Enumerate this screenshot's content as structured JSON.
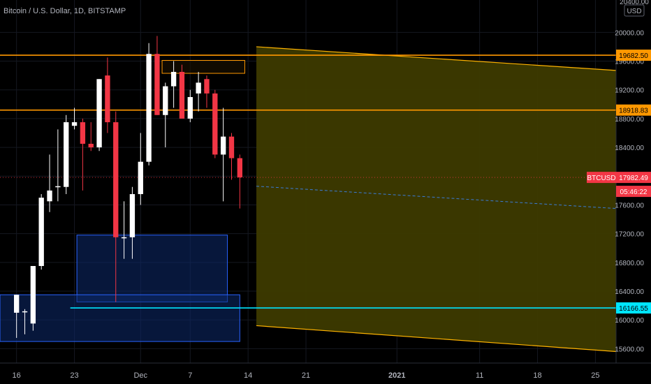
{
  "header": {
    "symbol_line": "Bitcoin / U.S. Dollar, 1D, BITSTAMP",
    "currency": "USD",
    "top_tick": "20400.00"
  },
  "colors": {
    "background": "#000000",
    "up_candle": "#ffffff",
    "down_candle": "#f23645",
    "level_line": "#ff9800",
    "support_line": "#00e5ff",
    "channel_fill": "#3d3a00",
    "channel_edge": "#ffb300",
    "demand_zone": "#0d2a6b",
    "demand_edge": "#2962ff",
    "midline": "#3a7bd5",
    "price_label": "#f23645",
    "axis_text": "#b2b5be"
  },
  "chart_data": {
    "type": "candlestick",
    "title": "Bitcoin / U.S. Dollar, 1D, BITSTAMP",
    "ylabel": "USD",
    "ylim": [
      15400,
      20450
    ],
    "y_ticks": [
      15600,
      16000,
      16400,
      16800,
      17200,
      17600,
      18000,
      18400,
      18800,
      19200,
      19600,
      20000
    ],
    "x_ticks": [
      {
        "label": "16",
        "day": 0
      },
      {
        "label": "23",
        "day": 7
      },
      {
        "label": "Dec",
        "day": 15
      },
      {
        "label": "7",
        "day": 21
      },
      {
        "label": "14",
        "day": 28
      },
      {
        "label": "21",
        "day": 35
      },
      {
        "label": "2021",
        "day": 46
      },
      {
        "label": "11",
        "day": 56
      },
      {
        "label": "18",
        "day": 63
      },
      {
        "label": "25",
        "day": 70
      }
    ],
    "x_range_days": [
      -2,
      72.5
    ],
    "candles": [
      {
        "o": 16100,
        "h": 16350,
        "l": 15750,
        "c": 16350
      },
      {
        "o": 16120,
        "h": 16150,
        "l": 15800,
        "c": 16120
      },
      {
        "o": 15950,
        "h": 16750,
        "l": 15850,
        "c": 16750
      },
      {
        "o": 16750,
        "h": 17750,
        "l": 16700,
        "c": 17700
      },
      {
        "o": 17650,
        "h": 18300,
        "l": 17500,
        "c": 17800
      },
      {
        "o": 17850,
        "h": 18650,
        "l": 17650,
        "c": 17860
      },
      {
        "o": 17850,
        "h": 18850,
        "l": 17750,
        "c": 18750
      },
      {
        "o": 18700,
        "h": 18950,
        "l": 18650,
        "c": 18750
      },
      {
        "o": 18750,
        "h": 18800,
        "l": 17800,
        "c": 18450
      },
      {
        "o": 18450,
        "h": 18750,
        "l": 18350,
        "c": 18400
      },
      {
        "o": 18400,
        "h": 19350,
        "l": 18350,
        "c": 19350
      },
      {
        "o": 19400,
        "h": 19650,
        "l": 18600,
        "c": 18750
      },
      {
        "o": 18750,
        "h": 18900,
        "l": 16250,
        "c": 17150
      },
      {
        "o": 17150,
        "h": 17650,
        "l": 16850,
        "c": 17150
      },
      {
        "o": 17150,
        "h": 17850,
        "l": 16850,
        "c": 17750
      },
      {
        "o": 17750,
        "h": 18600,
        "l": 17600,
        "c": 18200
      },
      {
        "o": 18200,
        "h": 19850,
        "l": 18150,
        "c": 19700
      },
      {
        "o": 19700,
        "h": 19950,
        "l": 18850,
        "c": 18850
      },
      {
        "o": 18850,
        "h": 19300,
        "l": 18400,
        "c": 19250
      },
      {
        "o": 19250,
        "h": 19600,
        "l": 18950,
        "c": 19450
      },
      {
        "o": 19450,
        "h": 19550,
        "l": 18850,
        "c": 18800
      },
      {
        "o": 18800,
        "h": 19200,
        "l": 18750,
        "c": 19100
      },
      {
        "o": 19150,
        "h": 19450,
        "l": 18900,
        "c": 19300
      },
      {
        "o": 19350,
        "h": 19400,
        "l": 18950,
        "c": 19150
      },
      {
        "o": 19150,
        "h": 19200,
        "l": 18250,
        "c": 18300
      },
      {
        "o": 18300,
        "h": 18950,
        "l": 17650,
        "c": 18550
      },
      {
        "o": 18550,
        "h": 18600,
        "l": 17950,
        "c": 18250
      },
      {
        "o": 18250,
        "h": 18300,
        "l": 17550,
        "c": 17982.49
      }
    ],
    "horizontal_levels": [
      {
        "value": 19682.5,
        "label": "19682.50",
        "kind": "resistance"
      },
      {
        "value": 18918.83,
        "label": "18918.83",
        "kind": "resistance"
      },
      {
        "value": 16166.55,
        "label": "16166.55",
        "kind": "support"
      }
    ],
    "channel": {
      "start_day": 29,
      "end_day": 72.5,
      "upper": [
        19800,
        19470
      ],
      "lower": [
        15920,
        15560
      ],
      "midline": [
        17860,
        17550
      ]
    },
    "zones": [
      {
        "name": "demand-zone-upper",
        "day_from": 7.3,
        "day_to": 25.5,
        "low": 16250,
        "high": 17180
      },
      {
        "name": "demand-zone-lower",
        "day_from": -2,
        "day_to": 27,
        "low": 15700,
        "high": 16350
      },
      {
        "name": "supply-box",
        "day_from": 17.6,
        "day_to": 27.6,
        "low": 19430,
        "high": 19610
      }
    ],
    "current_price": {
      "label": "BTCUSD",
      "value": "17982.49",
      "countdown": "05:46:22"
    }
  }
}
